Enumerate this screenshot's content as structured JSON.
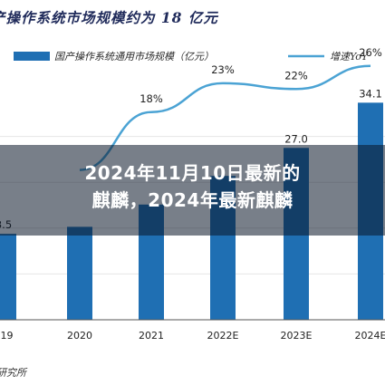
{
  "chart_data": {
    "type": "bar",
    "title": "产操作系统市场规模约为 18 亿元",
    "categories": [
      "2019",
      "2020",
      "2021",
      "2022E",
      "2023E",
      "2024E"
    ],
    "tick_labels": [
      "019",
      "2020",
      "2021",
      "2022E",
      "2023E",
      "2024E"
    ],
    "series": [
      {
        "name": "国产操作系统通用市场规模（亿元）",
        "type": "bar",
        "values": [
          13.5,
          14.6,
          18.1,
          22.6,
          27.0,
          34.1
        ],
        "labels": [
          "3.5",
          "",
          "",
          "",
          "27.0",
          "34.1"
        ],
        "color": "#1f6fb3"
      },
      {
        "name": "增速YoY",
        "type": "line",
        "values": [
          null,
          8,
          18,
          23,
          22,
          26
        ],
        "labels": [
          "",
          "",
          "18%",
          "23%",
          "22%",
          "26%"
        ],
        "color": "#4ba3d4"
      }
    ],
    "ylim": [
      0,
      36
    ],
    "ylim_right": [
      -30,
      28
    ],
    "grid": true
  },
  "overlay": {
    "headline_line1": "2024年11月10日最新的",
    "headline_line2": "麒麟，2024年最新麒麟"
  },
  "footer": {
    "source": "研究所"
  }
}
